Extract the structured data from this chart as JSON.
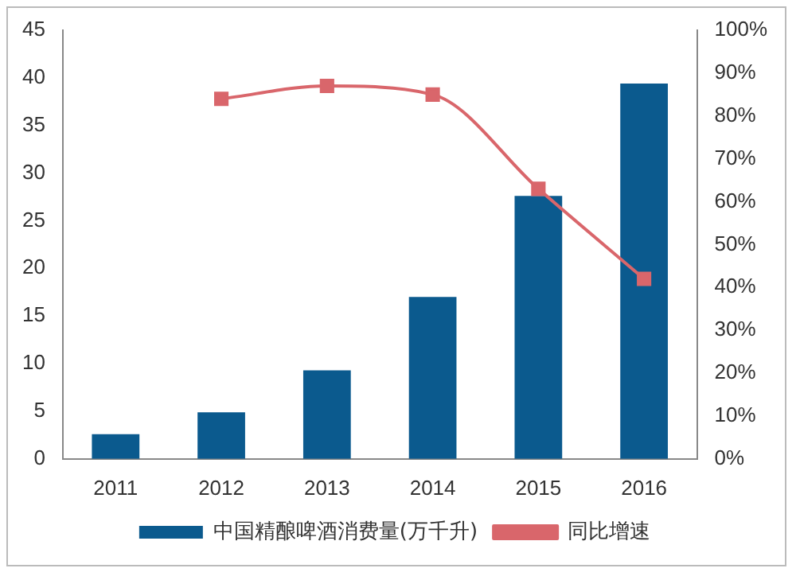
{
  "chart_data": {
    "type": "bar",
    "categories": [
      "2011",
      "2012",
      "2013",
      "2014",
      "2015",
      "2016"
    ],
    "series": [
      {
        "name": "中国精酿啤酒消费量(万千升)",
        "color": "#0b5a8e",
        "values": [
          2.6,
          4.9,
          9.3,
          17,
          27.6,
          39.4
        ]
      },
      {
        "name": "同比增速",
        "type": "line",
        "axis": "y2",
        "color": "#d9666b",
        "marker": "square",
        "values": [
          null,
          84,
          87,
          85,
          63,
          42
        ]
      }
    ],
    "ylim": [
      0,
      45
    ],
    "yticks": [
      0,
      5,
      10,
      15,
      20,
      25,
      30,
      35,
      40,
      45
    ],
    "y2lim": [
      0,
      100
    ],
    "y2ticks": [
      {
        "value": 0,
        "label": "0%"
      },
      {
        "value": 10,
        "label": "10%"
      },
      {
        "value": 20,
        "label": "20%"
      },
      {
        "value": 30,
        "label": "30%"
      },
      {
        "value": 40,
        "label": "40%"
      },
      {
        "value": 50,
        "label": "50%"
      },
      {
        "value": 60,
        "label": "60%"
      },
      {
        "value": 70,
        "label": "70%"
      },
      {
        "value": 80,
        "label": "80%"
      },
      {
        "value": 90,
        "label": "90%"
      },
      {
        "value": 100,
        "label": "100%"
      }
    ],
    "grid": false,
    "legend": "bottom"
  }
}
